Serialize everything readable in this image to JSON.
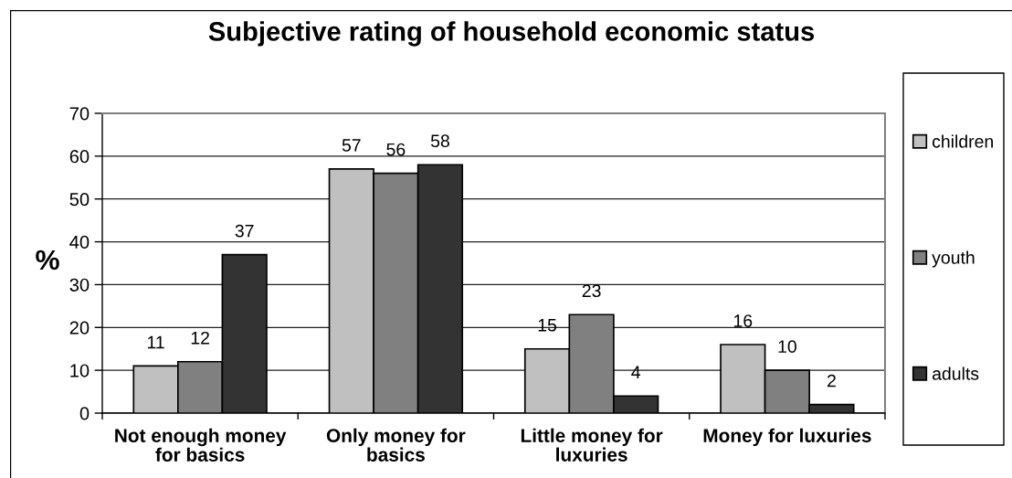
{
  "chart_data": {
    "type": "bar",
    "title": "Subjective rating of household economic status",
    "ylabel": "%",
    "categories": [
      "Not enough money for basics",
      "Only money for basics",
      "Little money for luxuries",
      "Money for luxuries"
    ],
    "series": [
      {
        "name": "children",
        "color": "#c0c0c0",
        "values": [
          11,
          57,
          15,
          16
        ]
      },
      {
        "name": "youth",
        "color": "#808080",
        "values": [
          12,
          56,
          23,
          10
        ]
      },
      {
        "name": "adults",
        "color": "#333333",
        "values": [
          37,
          58,
          4,
          2
        ]
      }
    ],
    "ylim": [
      0,
      70
    ],
    "yticks": [
      0,
      10,
      20,
      30,
      40,
      50,
      60,
      70
    ],
    "grid": "y",
    "legend": "right",
    "data_labels": true
  }
}
